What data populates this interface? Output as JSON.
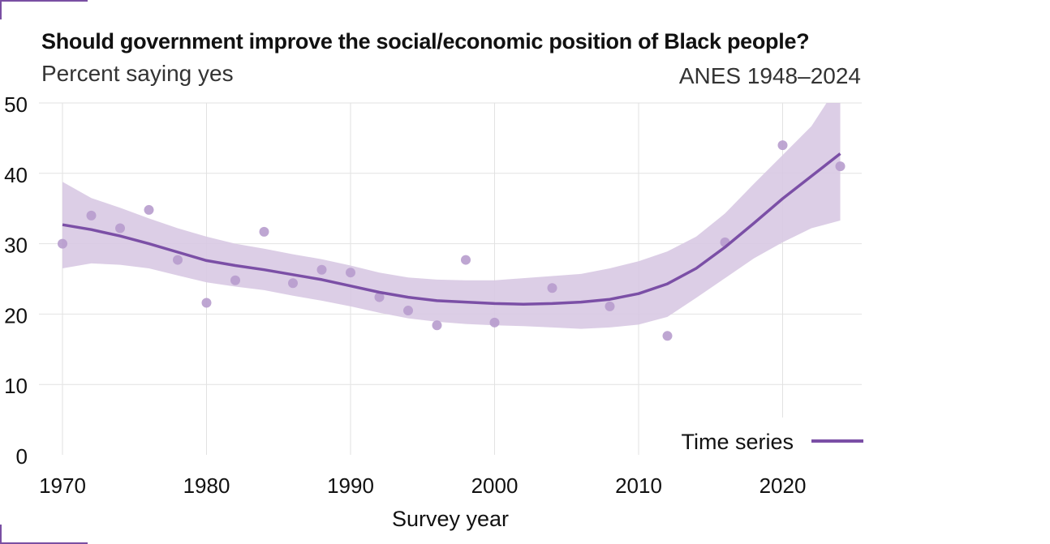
{
  "header": {
    "title": "Should government improve the social/economic position of Black people?",
    "subtitle": "Percent saying yes",
    "source": "ANES 1948–2024"
  },
  "colors": {
    "line": "#7b4fa6",
    "band": "#d8c9e3",
    "points": "#b79ccd",
    "grid": "#e2e2e2",
    "accent": "#7a4fa3"
  },
  "chart_data": {
    "type": "scatter",
    "xlabel": "Survey year",
    "ylabel": "",
    "xlim": [
      1970,
      2025
    ],
    "ylim": [
      0,
      50
    ],
    "x_ticks": [
      1970,
      1980,
      1990,
      2000,
      2010,
      2020
    ],
    "y_ticks": [
      0,
      10,
      20,
      30,
      40,
      50
    ],
    "grid": true,
    "legend_position": "bottom-right",
    "points": [
      {
        "x": 1970,
        "y": 30.0
      },
      {
        "x": 1972,
        "y": 34.0
      },
      {
        "x": 1974,
        "y": 32.2
      },
      {
        "x": 1976,
        "y": 34.8
      },
      {
        "x": 1978,
        "y": 27.7
      },
      {
        "x": 1980,
        "y": 21.6
      },
      {
        "x": 1982,
        "y": 24.8
      },
      {
        "x": 1984,
        "y": 31.7
      },
      {
        "x": 1986,
        "y": 24.4
      },
      {
        "x": 1988,
        "y": 26.3
      },
      {
        "x": 1990,
        "y": 25.9
      },
      {
        "x": 1992,
        "y": 22.4
      },
      {
        "x": 1994,
        "y": 20.5
      },
      {
        "x": 1996,
        "y": 18.4
      },
      {
        "x": 1998,
        "y": 27.7
      },
      {
        "x": 2000,
        "y": 18.8
      },
      {
        "x": 2004,
        "y": 23.7
      },
      {
        "x": 2008,
        "y": 21.1
      },
      {
        "x": 2012,
        "y": 16.9
      },
      {
        "x": 2016,
        "y": 30.2
      },
      {
        "x": 2020,
        "y": 44.0
      },
      {
        "x": 2024,
        "y": 41.0
      }
    ],
    "series": [
      {
        "name": "Time series",
        "x": [
          1970,
          1972,
          1974,
          1976,
          1978,
          1980,
          1982,
          1984,
          1986,
          1988,
          1990,
          1992,
          1994,
          1996,
          1998,
          2000,
          2002,
          2004,
          2006,
          2008,
          2010,
          2012,
          2014,
          2016,
          2018,
          2020,
          2022,
          2024
        ],
        "y": [
          32.7,
          32.0,
          31.1,
          30.0,
          28.8,
          27.6,
          26.9,
          26.3,
          25.6,
          24.9,
          24.0,
          23.1,
          22.4,
          21.9,
          21.7,
          21.5,
          21.4,
          21.5,
          21.7,
          22.1,
          22.9,
          24.3,
          26.5,
          29.5,
          32.9,
          36.4,
          39.6,
          42.8
        ],
        "lower": [
          26.5,
          27.2,
          27.0,
          26.5,
          25.5,
          24.5,
          23.9,
          23.4,
          22.6,
          21.9,
          21.1,
          20.2,
          19.4,
          18.9,
          18.6,
          18.4,
          18.3,
          18.1,
          17.9,
          18.1,
          18.5,
          19.6,
          22.3,
          25.1,
          27.9,
          30.2,
          32.2,
          33.3
        ],
        "upper": [
          38.8,
          36.5,
          35.1,
          33.6,
          32.2,
          31.0,
          30.0,
          29.3,
          28.5,
          27.8,
          26.9,
          25.9,
          25.2,
          24.9,
          24.8,
          24.8,
          25.1,
          25.4,
          25.7,
          26.5,
          27.5,
          28.9,
          31.0,
          34.3,
          38.5,
          42.6,
          46.7,
          53.0
        ]
      }
    ]
  }
}
